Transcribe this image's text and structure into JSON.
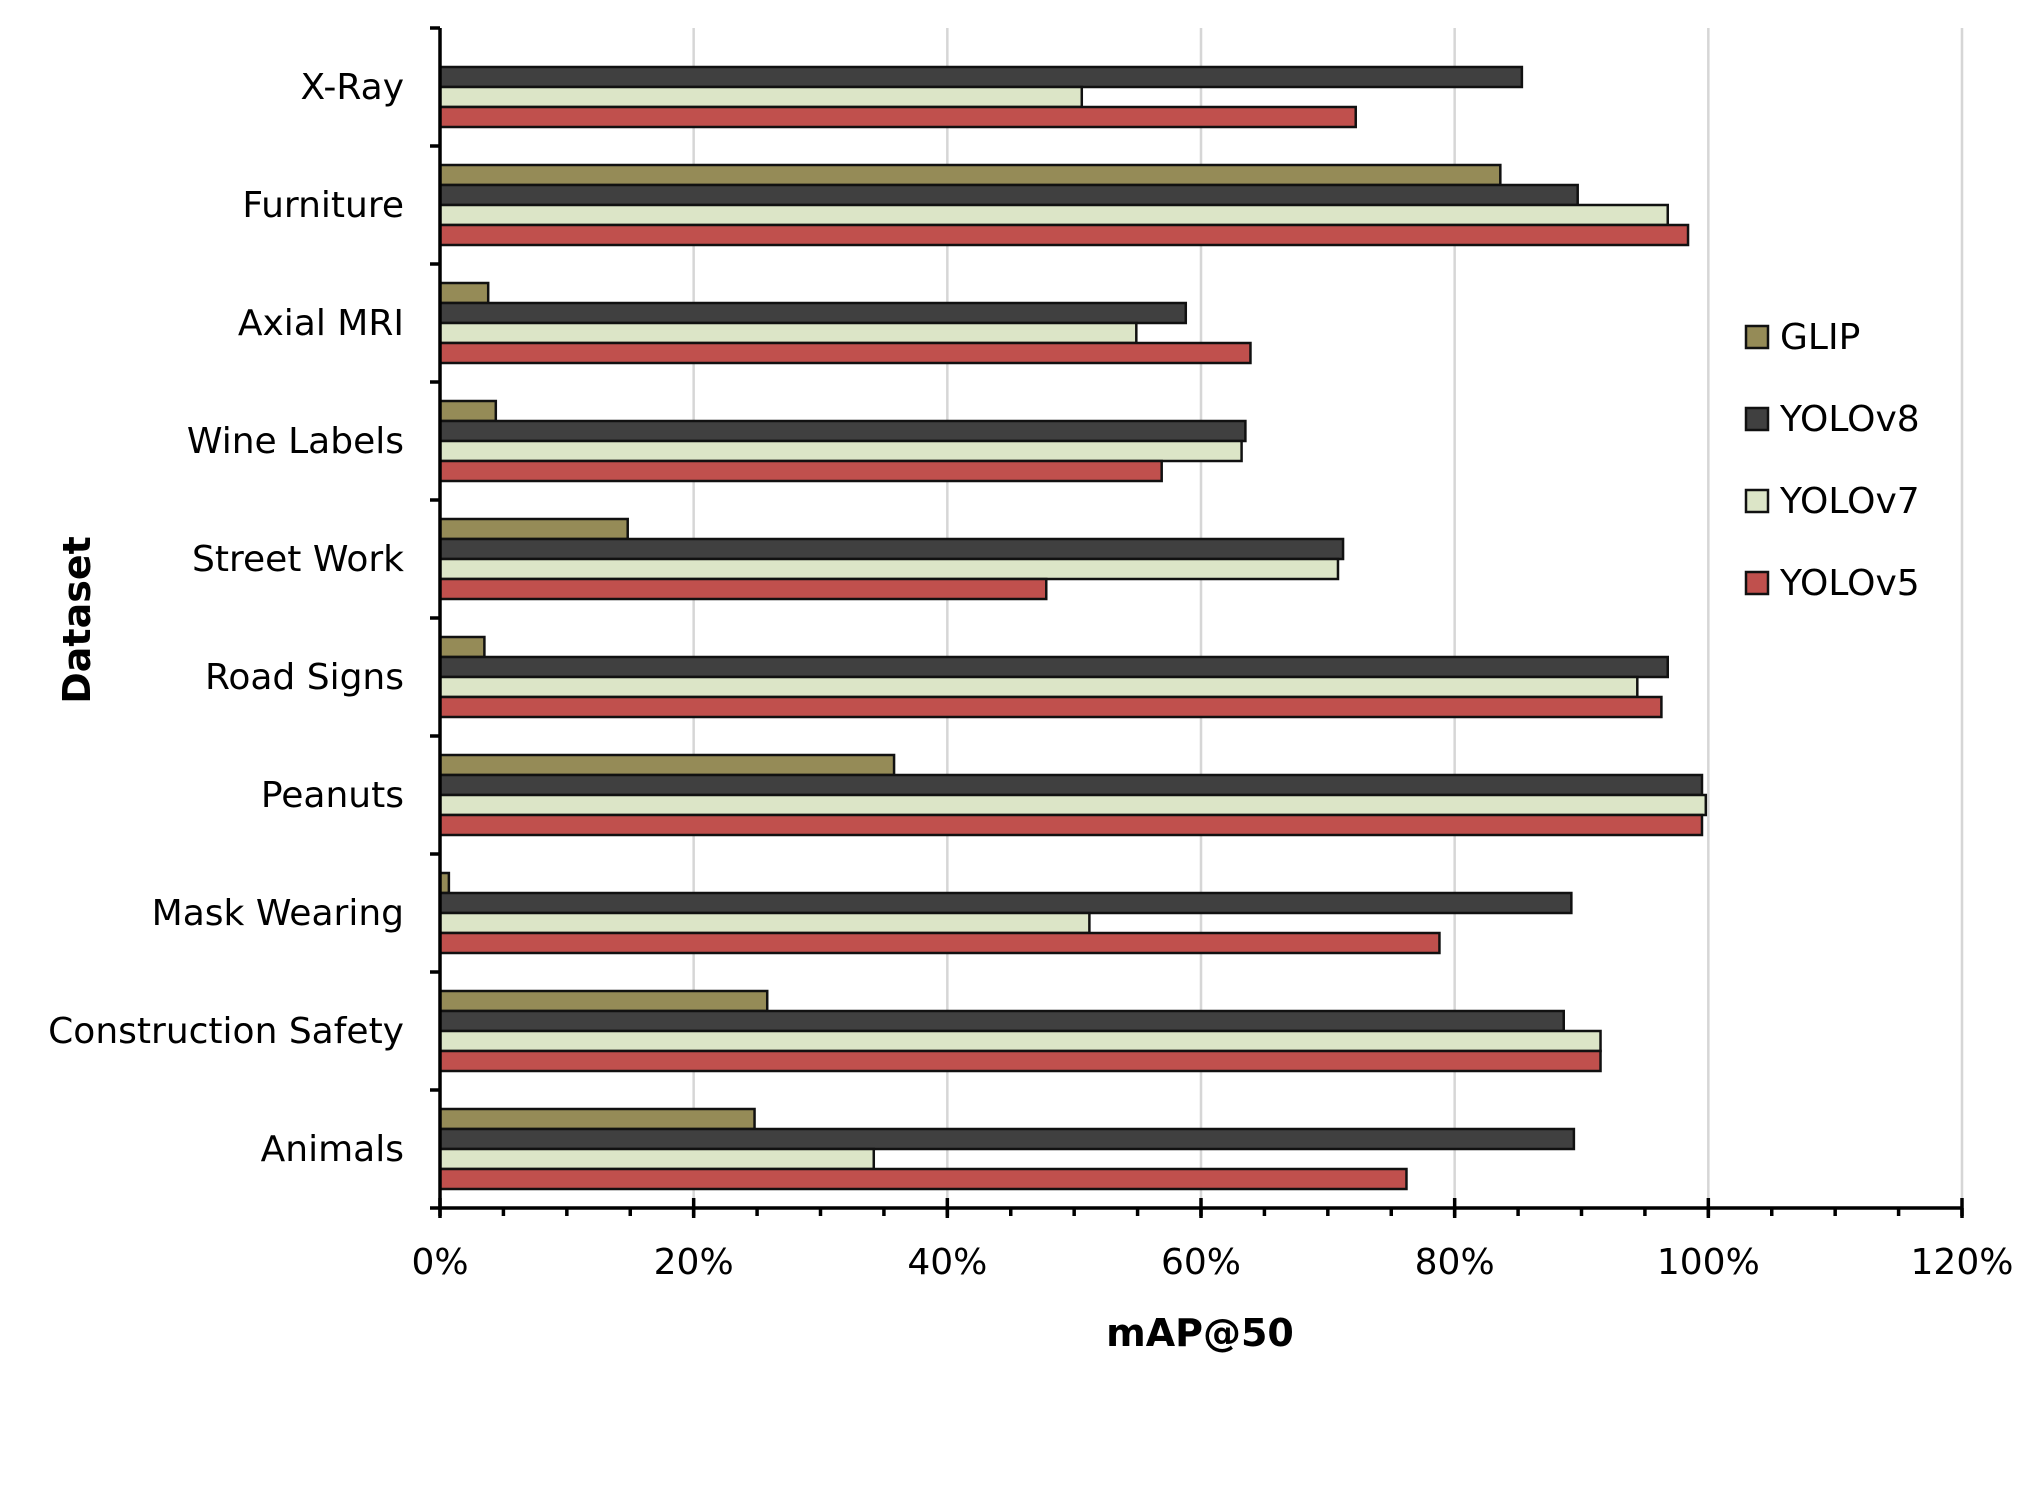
{
  "chart_data": {
    "type": "bar",
    "orientation": "horizontal",
    "categories": [
      "X-Ray",
      "Furniture",
      "Axial MRI",
      "Wine Labels",
      "Street Work",
      "Road Signs",
      "Peanuts",
      "Mask Wearing",
      "Construction Safety",
      "Animals"
    ],
    "series": [
      {
        "name": "GLIP",
        "color": "#958b57",
        "values": [
          null,
          83.6,
          3.8,
          4.4,
          14.8,
          3.5,
          35.8,
          0.7,
          25.8,
          24.8
        ]
      },
      {
        "name": "YOLOv8",
        "color": "#404040",
        "values": [
          85.3,
          89.7,
          58.8,
          63.5,
          71.2,
          96.8,
          99.5,
          89.2,
          88.6,
          89.4
        ]
      },
      {
        "name": "YOLOv7",
        "color": "#dce5c7",
        "values": [
          50.6,
          96.8,
          54.9,
          63.2,
          70.8,
          94.4,
          99.8,
          51.2,
          91.5,
          34.2
        ]
      },
      {
        "name": "YOLOv5",
        "color": "#c0504d",
        "values": [
          72.2,
          98.4,
          63.9,
          56.9,
          47.8,
          96.3,
          99.5,
          78.8,
          91.5,
          76.2
        ]
      }
    ],
    "xlabel": "mAP@50",
    "ylabel": "Dataset",
    "xlim": [
      0,
      120
    ],
    "xticks": [
      "0%",
      "20%",
      "40%",
      "60%",
      "80%",
      "100%",
      "120%"
    ],
    "grid": "vertical",
    "legend": "right"
  }
}
